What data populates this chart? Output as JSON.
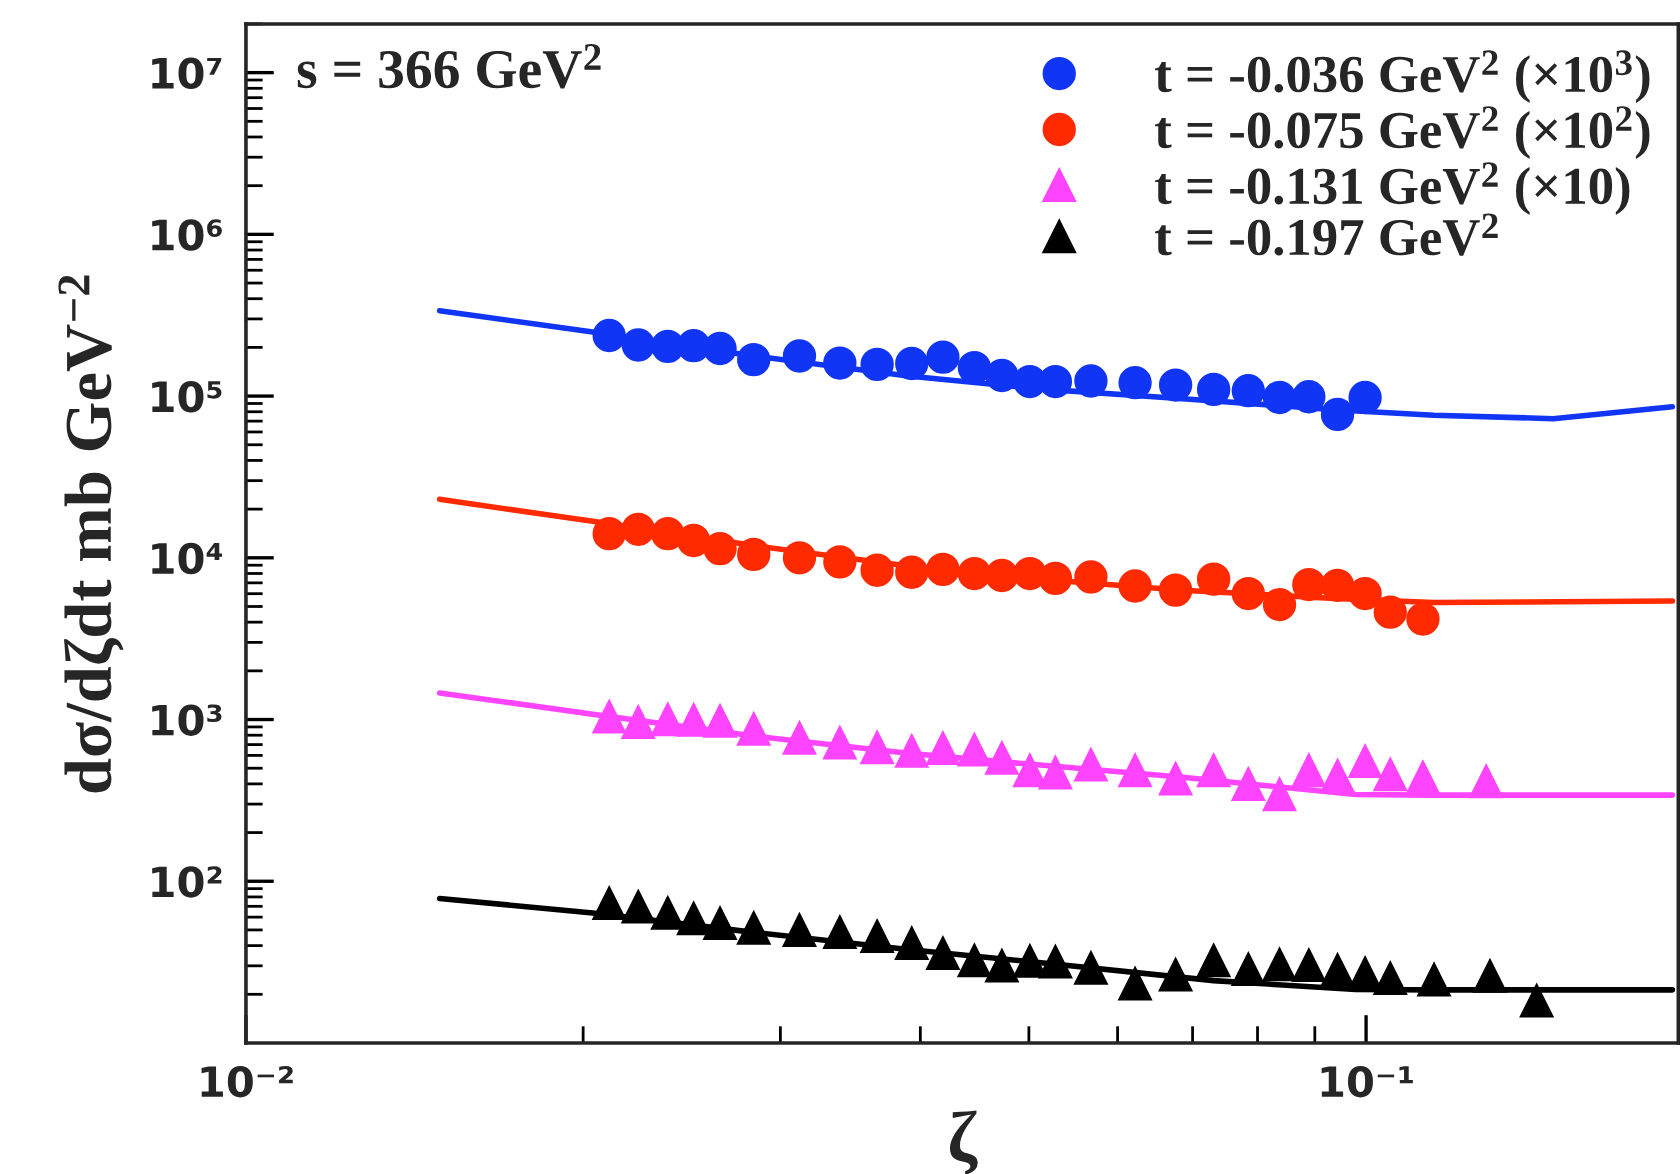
{
  "chart_data": {
    "type": "scatter",
    "xlabel": "ζ",
    "ylabel": "dσ/dζdt mb GeV$^{−2}$",
    "annotations": [
      "s = 366 GeV$^{2}$"
    ],
    "log": "xy",
    "xlim": [
      0.01,
      0.19
    ],
    "ylim": [
      10,
      20000000
    ],
    "xticks": [
      {
        "value": 0.01,
        "label": "10⁻²"
      },
      {
        "value": 0.1,
        "label": "10⁻¹"
      }
    ],
    "yticks": [
      {
        "value": 100,
        "label": "10²"
      },
      {
        "value": 1000,
        "label": "10³"
      },
      {
        "value": 10000,
        "label": "10⁴"
      },
      {
        "value": 100000,
        "label": "10⁵"
      },
      {
        "value": 1000000,
        "label": "10⁶"
      },
      {
        "value": 10000000,
        "label": "10⁷"
      }
    ],
    "legend": "top right",
    "series": [
      {
        "name": "t = -0.036 GeV$^{2}$ (×10$^{3}$)",
        "color": "#1035f5",
        "marker": "circle",
        "x": [
          0.0211,
          0.0224,
          0.0238,
          0.0251,
          0.0265,
          0.0284,
          0.0312,
          0.0339,
          0.0366,
          0.0393,
          0.0419,
          0.0447,
          0.0473,
          0.0501,
          0.0528,
          0.0568,
          0.0622,
          0.0676,
          0.0731,
          0.0785,
          0.0837,
          0.0889,
          0.0943,
          0.0998
        ],
        "values": [
          237000,
          207000,
          203000,
          205000,
          197000,
          168000,
          177000,
          160000,
          157000,
          159000,
          174000,
          150000,
          134000,
          123000,
          123000,
          124000,
          121000,
          117000,
          110000,
          108000,
          98000,
          99000,
          77000,
          98000
        ]
      },
      {
        "name": "t = -0.075 GeV$^{2}$ (×10$^{2}$)",
        "color": "#ff2a00",
        "marker": "circle",
        "x": [
          0.0211,
          0.0224,
          0.0238,
          0.0251,
          0.0265,
          0.0284,
          0.0312,
          0.0339,
          0.0366,
          0.0393,
          0.0419,
          0.0447,
          0.0473,
          0.0501,
          0.0528,
          0.0568,
          0.0622,
          0.0676,
          0.0731,
          0.0785,
          0.0837,
          0.0889,
          0.0943,
          0.0998,
          0.1051,
          0.1124
        ],
        "values": [
          14100,
          15000,
          14100,
          12800,
          11400,
          10500,
          10000,
          9440,
          8380,
          8140,
          8480,
          7990,
          7770,
          7990,
          7460,
          7610,
          6690,
          6310,
          7380,
          6010,
          5140,
          6830,
          6760,
          6010,
          4610,
          4180
        ]
      },
      {
        "name": "t = -0.131 GeV$^{2}$ (×10)",
        "color": "#ff44ff",
        "marker": "triangle",
        "x": [
          0.0211,
          0.0224,
          0.0238,
          0.0251,
          0.0265,
          0.0284,
          0.0312,
          0.0339,
          0.0366,
          0.0393,
          0.0419,
          0.0447,
          0.0473,
          0.0501,
          0.0528,
          0.0568,
          0.0622,
          0.0676,
          0.0731,
          0.0785,
          0.0837,
          0.0889,
          0.0943,
          0.0998,
          0.1051,
          0.1124,
          0.128
        ],
        "values": [
          1040,
          962,
          1000,
          991,
          979,
          873,
          768,
          717,
          670,
          637,
          663,
          649,
          578,
          484,
          469,
          524,
          484,
          430,
          484,
          398,
          344,
          484,
          448,
          551,
          456,
          438,
          414
        ]
      },
      {
        "name": "t = -0.197 GeV$^{2}$",
        "color": "#000000",
        "marker": "triangle",
        "x": [
          0.0211,
          0.0224,
          0.0238,
          0.0251,
          0.0265,
          0.0284,
          0.0312,
          0.0339,
          0.0366,
          0.0393,
          0.0419,
          0.0447,
          0.0473,
          0.0501,
          0.0528,
          0.0568,
          0.0622,
          0.0676,
          0.0731,
          0.0785,
          0.0837,
          0.0889,
          0.0943,
          0.0998,
          0.1051,
          0.115,
          0.129,
          0.142
        ],
        "values": [
          73,
          69.5,
          63.6,
          58.8,
          54.9,
          51.3,
          49.8,
          48.3,
          45.6,
          41.3,
          35.8,
          32.3,
          30.0,
          32.1,
          31.7,
          29.0,
          23.2,
          26.4,
          32.3,
          28.5,
          30.5,
          30.2,
          28.2,
          26.9,
          25.1,
          24.6,
          25.9,
          18.2
        ]
      },
      {
        "type": "line",
        "color": "#1035f5",
        "x": [
          0.01489,
          0.0204,
          0.0284,
          0.039,
          0.0518,
          0.0686,
          0.0937,
          0.1149,
          0.1469,
          0.1877
        ],
        "values": [
          337000,
          249000,
          177000,
          133000,
          110000,
          96400,
          82400,
          76100,
          72500,
          86000
        ]
      },
      {
        "type": "line",
        "color": "#ff2a00",
        "x": [
          0.01489,
          0.0204,
          0.0284,
          0.039,
          0.0518,
          0.0686,
          0.0937,
          0.1149,
          0.1877
        ],
        "values": [
          23000,
          16800,
          11900,
          8890,
          7310,
          6310,
          5610,
          5290,
          5400
        ]
      },
      {
        "type": "line",
        "color": "#ff44ff",
        "x": [
          0.01489,
          0.0204,
          0.0284,
          0.039,
          0.0518,
          0.0686,
          0.0979,
          0.1149,
          0.1877
        ],
        "values": [
          1460,
          1080,
          791,
          618,
          519,
          439,
          344,
          341,
          341
        ]
      },
      {
        "type": "line",
        "color": "#000000",
        "x": [
          0.01489,
          0.0204,
          0.0284,
          0.039,
          0.0518,
          0.0731,
          0.0979,
          0.1149,
          0.1877
        ],
        "values": [
          78.2,
          63.7,
          48.3,
          37.8,
          31.1,
          24.3,
          21.4,
          21.3,
          21.3
        ]
      }
    ]
  }
}
